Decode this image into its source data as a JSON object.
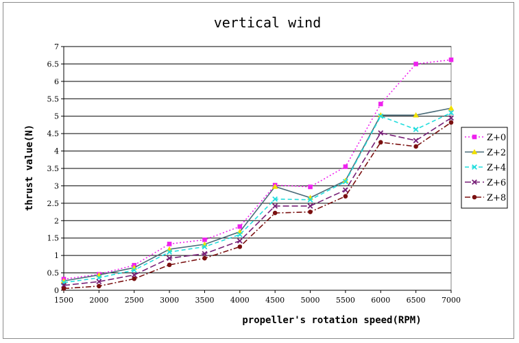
{
  "chart_data": {
    "type": "line",
    "title": "vertical wind",
    "xlabel": "propeller's rotation speed(RPM)",
    "ylabel": "thrust value(N)",
    "x": [
      1500,
      2000,
      2500,
      3000,
      3500,
      4000,
      4500,
      5000,
      5500,
      6000,
      6500,
      7000
    ],
    "x_tick_labels": [
      "1500",
      "2000",
      "2500",
      "3000",
      "3500",
      "4000",
      "4500",
      "5000",
      "5500",
      "6000",
      "6500",
      "7000"
    ],
    "ylim": [
      0,
      7
    ],
    "y_ticks": [
      0,
      0.5,
      1,
      1.5,
      2,
      2.5,
      3,
      3.5,
      4,
      4.5,
      5,
      5.5,
      6,
      6.5,
      7
    ],
    "y_tick_labels": [
      "0",
      "0.5",
      "1",
      "1.5",
      "2",
      "2.5",
      "3",
      "3.5",
      "4",
      "4.5",
      "5",
      "5.5",
      "6",
      "6.5",
      "7"
    ],
    "grid": "horizontal",
    "legend_position": "right",
    "series": [
      {
        "name": "Z+0",
        "color": "#ee22ee",
        "dash": "2,3",
        "marker": "square",
        "values": [
          0.32,
          0.46,
          0.72,
          1.33,
          1.45,
          1.83,
          3.02,
          2.97,
          3.55,
          5.35,
          6.5,
          6.62
        ]
      },
      {
        "name": "Z+2",
        "color": "#f0e000",
        "markerColor": "#f0e000",
        "lineColor": "#4a6b78",
        "dash": "",
        "marker": "triangle",
        "values": [
          0.27,
          0.44,
          0.65,
          1.18,
          1.32,
          1.68,
          2.98,
          2.66,
          3.15,
          5.03,
          5.03,
          5.23
        ]
      },
      {
        "name": "Z+4",
        "color": "#22dddd",
        "dash": "6,4",
        "marker": "x",
        "values": [
          0.22,
          0.36,
          0.58,
          1.1,
          1.25,
          1.6,
          2.62,
          2.6,
          3.12,
          5.0,
          4.62,
          5.1
        ]
      },
      {
        "name": "Z+6",
        "color": "#771f77",
        "dash": "9,4",
        "marker": "x",
        "values": [
          0.14,
          0.25,
          0.44,
          0.92,
          1.05,
          1.42,
          2.42,
          2.42,
          2.88,
          4.52,
          4.3,
          4.95
        ]
      },
      {
        "name": "Z+8",
        "color": "#7a1010",
        "dash": "8,3,2,3",
        "marker": "circle",
        "values": [
          0.05,
          0.12,
          0.33,
          0.73,
          0.92,
          1.25,
          2.22,
          2.25,
          2.7,
          4.25,
          4.13,
          4.82
        ]
      }
    ]
  }
}
